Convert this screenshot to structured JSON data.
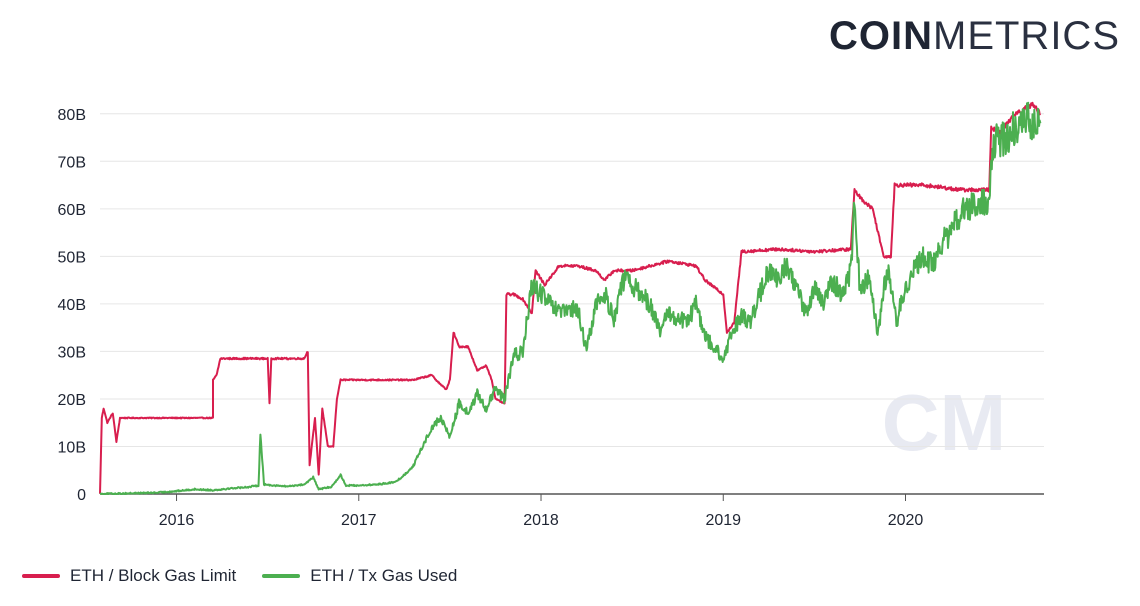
{
  "brand": {
    "bold": "COIN",
    "light": "METRICS"
  },
  "watermark": "CM",
  "colors": {
    "red": "#d81e4e",
    "green": "#4caf50",
    "grid": "#e6e6e6",
    "axis": "#555555",
    "text": "#1f2533"
  },
  "chart_data": {
    "type": "line",
    "title": "",
    "xlabel": "",
    "ylabel": "",
    "xlim": [
      2015.58,
      2020.76
    ],
    "ylim": [
      0,
      85
    ],
    "y_unit": "B",
    "x_ticks": [
      2016,
      2017,
      2018,
      2019,
      2020
    ],
    "x_tick_labels": [
      "2016",
      "2017",
      "2018",
      "2019",
      "2020"
    ],
    "y_ticks": [
      0,
      10,
      20,
      30,
      40,
      50,
      60,
      70,
      80
    ],
    "y_tick_labels": [
      "0",
      "10B",
      "20B",
      "30B",
      "40B",
      "50B",
      "60B",
      "70B",
      "80B"
    ],
    "grid": true,
    "legend_position": "bottom-left",
    "series": [
      {
        "name": "ETH / Block Gas Limit",
        "color": "#d81e4e",
        "points": [
          [
            2015.58,
            0
          ],
          [
            2015.59,
            16
          ],
          [
            2015.6,
            18
          ],
          [
            2015.62,
            15
          ],
          [
            2015.65,
            17
          ],
          [
            2015.67,
            11
          ],
          [
            2015.69,
            16
          ],
          [
            2015.8,
            16
          ],
          [
            2016.0,
            16
          ],
          [
            2016.2,
            16
          ],
          [
            2016.2,
            24
          ],
          [
            2016.22,
            25
          ],
          [
            2016.24,
            28.5
          ],
          [
            2016.5,
            28.5
          ],
          [
            2016.51,
            19
          ],
          [
            2016.52,
            28.5
          ],
          [
            2016.7,
            28.5
          ],
          [
            2016.72,
            30
          ],
          [
            2016.73,
            6
          ],
          [
            2016.76,
            16
          ],
          [
            2016.78,
            4
          ],
          [
            2016.8,
            18
          ],
          [
            2016.83,
            10
          ],
          [
            2016.86,
            10
          ],
          [
            2016.88,
            20
          ],
          [
            2016.9,
            24
          ],
          [
            2017.1,
            24
          ],
          [
            2017.3,
            24
          ],
          [
            2017.4,
            25
          ],
          [
            2017.45,
            23
          ],
          [
            2017.48,
            22
          ],
          [
            2017.5,
            24
          ],
          [
            2017.52,
            34
          ],
          [
            2017.55,
            31
          ],
          [
            2017.6,
            31
          ],
          [
            2017.65,
            26
          ],
          [
            2017.7,
            27
          ],
          [
            2017.73,
            24
          ],
          [
            2017.75,
            20
          ],
          [
            2017.8,
            19
          ],
          [
            2017.81,
            42
          ],
          [
            2017.85,
            42
          ],
          [
            2017.9,
            41
          ],
          [
            2017.95,
            38
          ],
          [
            2017.97,
            47
          ],
          [
            2018.02,
            44
          ],
          [
            2018.1,
            48
          ],
          [
            2018.2,
            48
          ],
          [
            2018.3,
            47
          ],
          [
            2018.35,
            45
          ],
          [
            2018.4,
            47
          ],
          [
            2018.5,
            47
          ],
          [
            2018.7,
            49
          ],
          [
            2018.85,
            48
          ],
          [
            2018.9,
            45
          ],
          [
            2019.0,
            42
          ],
          [
            2019.02,
            34
          ],
          [
            2019.06,
            36
          ],
          [
            2019.1,
            51
          ],
          [
            2019.3,
            51.5
          ],
          [
            2019.5,
            51
          ],
          [
            2019.7,
            51.5
          ],
          [
            2019.72,
            64
          ],
          [
            2019.76,
            62
          ],
          [
            2019.82,
            60
          ],
          [
            2019.88,
            50
          ],
          [
            2019.92,
            50
          ],
          [
            2019.94,
            65
          ],
          [
            2020.1,
            65
          ],
          [
            2020.3,
            64
          ],
          [
            2020.46,
            64
          ],
          [
            2020.47,
            77
          ],
          [
            2020.52,
            76
          ],
          [
            2020.6,
            80
          ],
          [
            2020.7,
            82
          ],
          [
            2020.74,
            80
          ]
        ]
      },
      {
        "name": "ETH / Tx Gas Used",
        "color": "#4caf50",
        "points": [
          [
            2015.58,
            0
          ],
          [
            2015.7,
            0.1
          ],
          [
            2015.9,
            0.3
          ],
          [
            2016.0,
            0.6
          ],
          [
            2016.1,
            1
          ],
          [
            2016.2,
            0.8
          ],
          [
            2016.3,
            1.2
          ],
          [
            2016.4,
            1.5
          ],
          [
            2016.45,
            1.8
          ],
          [
            2016.46,
            13
          ],
          [
            2016.48,
            2
          ],
          [
            2016.6,
            1.6
          ],
          [
            2016.7,
            2
          ],
          [
            2016.75,
            3.5
          ],
          [
            2016.78,
            1
          ],
          [
            2016.85,
            1.5
          ],
          [
            2016.9,
            4
          ],
          [
            2016.93,
            1.8
          ],
          [
            2017.0,
            1.8
          ],
          [
            2017.1,
            2
          ],
          [
            2017.2,
            2.5
          ],
          [
            2017.25,
            4
          ],
          [
            2017.3,
            6
          ],
          [
            2017.35,
            10
          ],
          [
            2017.4,
            14
          ],
          [
            2017.45,
            16
          ],
          [
            2017.5,
            12
          ],
          [
            2017.55,
            19
          ],
          [
            2017.6,
            17
          ],
          [
            2017.65,
            21
          ],
          [
            2017.7,
            18
          ],
          [
            2017.75,
            22
          ],
          [
            2017.8,
            20
          ],
          [
            2017.85,
            29
          ],
          [
            2017.9,
            30
          ],
          [
            2017.95,
            44
          ],
          [
            2018.0,
            42
          ],
          [
            2018.1,
            38
          ],
          [
            2018.2,
            39
          ],
          [
            2018.25,
            30
          ],
          [
            2018.3,
            40
          ],
          [
            2018.35,
            42
          ],
          [
            2018.4,
            37
          ],
          [
            2018.45,
            45
          ],
          [
            2018.5,
            44
          ],
          [
            2018.6,
            40
          ],
          [
            2018.65,
            34
          ],
          [
            2018.7,
            38
          ],
          [
            2018.8,
            36
          ],
          [
            2018.85,
            40
          ],
          [
            2018.9,
            33
          ],
          [
            2018.95,
            31
          ],
          [
            2019.0,
            28
          ],
          [
            2019.05,
            34
          ],
          [
            2019.1,
            38
          ],
          [
            2019.15,
            36
          ],
          [
            2019.2,
            42
          ],
          [
            2019.25,
            47
          ],
          [
            2019.3,
            45
          ],
          [
            2019.35,
            48
          ],
          [
            2019.4,
            44
          ],
          [
            2019.45,
            38
          ],
          [
            2019.5,
            43
          ],
          [
            2019.55,
            40
          ],
          [
            2019.6,
            45
          ],
          [
            2019.65,
            42
          ],
          [
            2019.7,
            47
          ],
          [
            2019.72,
            61
          ],
          [
            2019.75,
            43
          ],
          [
            2019.8,
            46
          ],
          [
            2019.85,
            34
          ],
          [
            2019.9,
            48
          ],
          [
            2019.95,
            36
          ],
          [
            2020.0,
            44
          ],
          [
            2020.1,
            50
          ],
          [
            2020.15,
            48
          ],
          [
            2020.2,
            53
          ],
          [
            2020.25,
            55
          ],
          [
            2020.3,
            59
          ],
          [
            2020.4,
            61
          ],
          [
            2020.46,
            61
          ],
          [
            2020.48,
            74
          ],
          [
            2020.55,
            75
          ],
          [
            2020.65,
            79
          ],
          [
            2020.72,
            78
          ],
          [
            2020.74,
            78
          ]
        ]
      }
    ]
  }
}
